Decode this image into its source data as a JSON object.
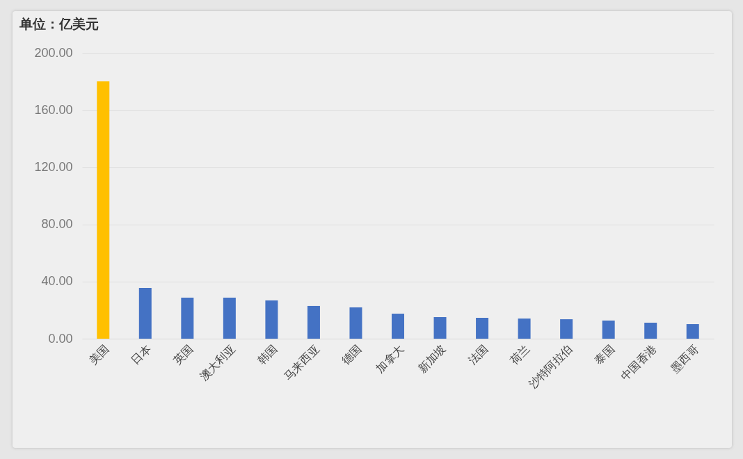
{
  "chart_data": {
    "type": "bar",
    "title": "单位：亿美元",
    "categories": [
      "美国",
      "日本",
      "英国",
      "澳大利亚",
      "韩国",
      "马来西亚",
      "德国",
      "加拿大",
      "新加坡",
      "法国",
      "荷兰",
      "沙特阿拉伯",
      "泰国",
      "中国香港",
      "墨西哥"
    ],
    "values": [
      180,
      35.5,
      28.7,
      28.7,
      26.8,
      22.9,
      21.9,
      17.5,
      15.1,
      14.6,
      14.1,
      13.6,
      12.7,
      11.2,
      10.2
    ],
    "colors": [
      "#ffc000",
      "#4472c4",
      "#4472c4",
      "#4472c4",
      "#4472c4",
      "#4472c4",
      "#4472c4",
      "#4472c4",
      "#4472c4",
      "#4472c4",
      "#4472c4",
      "#4472c4",
      "#4472c4",
      "#4472c4",
      "#4472c4"
    ],
    "ylim": [
      0,
      200
    ],
    "yticks": [
      {
        "value": 0,
        "label": "0.00"
      },
      {
        "value": 40,
        "label": "40.00"
      },
      {
        "value": 80,
        "label": "80.00"
      },
      {
        "value": 120,
        "label": "120.00"
      },
      {
        "value": 160,
        "label": "160.00"
      },
      {
        "value": 200,
        "label": "200.00"
      }
    ],
    "grid": "y"
  }
}
